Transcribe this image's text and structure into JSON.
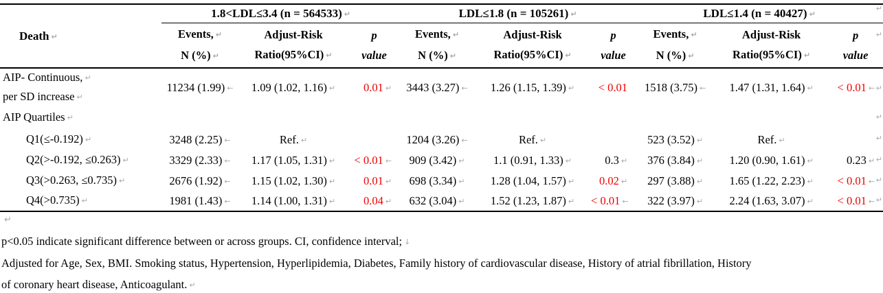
{
  "colors": {
    "significant_red": "#ee0000",
    "formatting_mark_gray": "#a8a8a8"
  },
  "marks": {
    "paragraph": "↵",
    "line_break": "↓",
    "cell_end": "←"
  },
  "table": {
    "corner_label": "Death",
    "groups": [
      {
        "title": "1.8<LDL≤3.4 (n = 564533)"
      },
      {
        "title": "LDL≤1.8 (n = 105261)"
      },
      {
        "title": "LDL≤1.4 (n = 40427)"
      }
    ],
    "columns": {
      "events": [
        "Events,",
        "N (%)"
      ],
      "risk": [
        "Adjust-Risk",
        "Ratio(95%CI)"
      ],
      "p": [
        "p",
        "value"
      ]
    },
    "rows": [
      {
        "label_lines": [
          "AIP- Continuous,",
          "per SD increase"
        ],
        "indent": false,
        "cells": [
          {
            "events": "11234 (1.99)",
            "events_mark": "←",
            "risk": "1.09 (1.02, 1.16)",
            "risk_mark": "↵",
            "p": "0.01",
            "p_mark": "↵",
            "p_red": true
          },
          {
            "events": "3443 (3.27)",
            "events_mark": "←",
            "risk": "1.26 (1.15, 1.39)",
            "risk_mark": "↵",
            "p": "< 0.01",
            "p_mark": "",
            "p_red": true
          },
          {
            "events": "1518 (3.75)",
            "events_mark": "←",
            "risk": "1.47 (1.31, 1.64)",
            "risk_mark": "↵",
            "p": "< 0.01",
            "p_mark": "←",
            "p_red": true
          }
        ]
      },
      {
        "label_lines": [
          "AIP Quartiles"
        ],
        "indent": false,
        "cells": null
      },
      {
        "label_lines": [
          "Q1(≤-0.192)"
        ],
        "indent": true,
        "cells": [
          {
            "events": "3248 (2.25)",
            "events_mark": "←",
            "risk": "Ref.",
            "risk_mark": "↵",
            "p": "",
            "p_mark": "",
            "p_red": false
          },
          {
            "events": "1204 (3.26)",
            "events_mark": "←",
            "risk": "Ref.",
            "risk_mark": "↵",
            "p": "",
            "p_mark": "",
            "p_red": false
          },
          {
            "events": "523 (3.52)",
            "events_mark": "↵",
            "risk": "Ref.",
            "risk_mark": "↵",
            "p": "",
            "p_mark": "",
            "p_red": false
          }
        ]
      },
      {
        "label_lines": [
          "Q2(>-0.192, ≤0.263)"
        ],
        "indent": true,
        "cells": [
          {
            "events": "3329 (2.33)",
            "events_mark": "←",
            "risk": "1.17 (1.05, 1.31)",
            "risk_mark": "↵",
            "p": "< 0.01",
            "p_mark": "←",
            "p_red": true
          },
          {
            "events": "909 (3.42)",
            "events_mark": "↵",
            "risk": "1.1 (0.91, 1.33)",
            "risk_mark": "↵",
            "p": "0.3",
            "p_mark": "↵",
            "p_red": false
          },
          {
            "events": "376 (3.84)",
            "events_mark": "↵",
            "risk": "1.20 (0.90, 1.61)",
            "risk_mark": "↵",
            "p": "0.23",
            "p_mark": "↵",
            "p_red": false
          }
        ]
      },
      {
        "label_lines": [
          "Q3(>0.263, ≤0.735)"
        ],
        "indent": true,
        "cells": [
          {
            "events": "2676 (1.92)",
            "events_mark": "←",
            "risk": "1.15 (1.02, 1.30)",
            "risk_mark": "↵",
            "p": "0.01",
            "p_mark": "↵",
            "p_red": true
          },
          {
            "events": "698 (3.34)",
            "events_mark": "↵",
            "risk": "1.28 (1.04, 1.57)",
            "risk_mark": "↵",
            "p": "0.02",
            "p_mark": "↵",
            "p_red": true
          },
          {
            "events": "297 (3.88)",
            "events_mark": "↵",
            "risk": "1.65 (1.22, 2.23)",
            "risk_mark": "↵",
            "p": "< 0.01",
            "p_mark": "←",
            "p_red": true
          }
        ]
      },
      {
        "label_lines": [
          "Q4(>0.735)"
        ],
        "indent": true,
        "cells": [
          {
            "events": "1981 (1.43)",
            "events_mark": "←",
            "risk": "1.14 (1.00, 1.31)",
            "risk_mark": "↵",
            "p": "0.04",
            "p_mark": "↵",
            "p_red": true
          },
          {
            "events": "632 (3.04)",
            "events_mark": "↵",
            "risk": "1.52 (1.23, 1.87)",
            "risk_mark": "↵",
            "p": "< 0.01",
            "p_mark": "←",
            "p_red": true
          },
          {
            "events": "322 (3.97)",
            "events_mark": "↵",
            "risk": "2.24 (1.63, 3.07)",
            "risk_mark": "↵",
            "p": "< 0.01",
            "p_mark": "←",
            "p_red": true
          }
        ]
      }
    ]
  },
  "footnotes": {
    "note1": "p<0.05 indicate significant difference between or across groups. CI, confidence interval;",
    "note2_line1": "Adjusted for Age, Sex, BMI. Smoking status, Hypertension, Hyperlipidemia, Diabetes, Family history of cardiovascular disease, History of atrial fibrillation, History",
    "note2_line2": "of coronary heart disease, Anticoagulant."
  }
}
